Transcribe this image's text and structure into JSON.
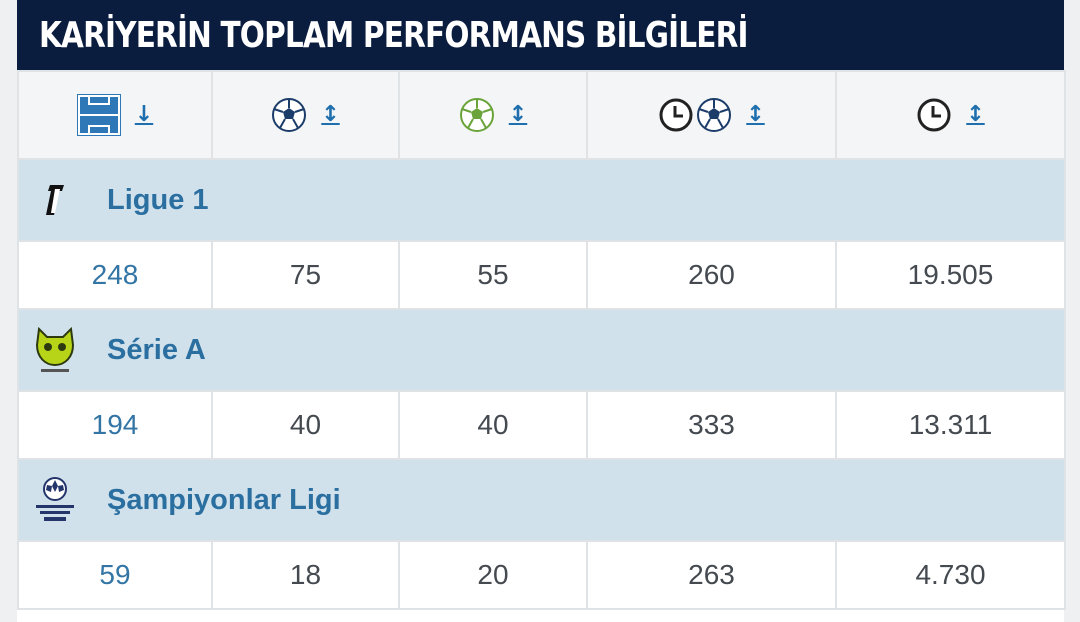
{
  "title": "KARİYERİN TOPLAM PERFORMANS BİLGİLERİ",
  "header_icons": [
    {
      "icon": "pitch-icon",
      "sort": "↓"
    },
    {
      "icon": "goals-ball-icon",
      "sort": "↕"
    },
    {
      "icon": "assists-ball-icon",
      "sort": "↕"
    },
    {
      "icon": "minutes-per-goal-icon",
      "sort": "↕"
    },
    {
      "icon": "minutes-played-icon",
      "sort": "↕"
    }
  ],
  "leagues": [
    {
      "name": "Ligue 1",
      "logo": "ligue1-logo",
      "stats": [
        "248",
        "75",
        "55",
        "260",
        "19.505"
      ]
    },
    {
      "name": "Série A",
      "logo": "serie-a-logo",
      "stats": [
        "194",
        "40",
        "40",
        "333",
        "13.311"
      ]
    },
    {
      "name": "Şampiyonlar Ligi",
      "logo": "champions-league-logo",
      "stats": [
        "59",
        "18",
        "20",
        "263",
        "4.730"
      ]
    }
  ],
  "colors": {
    "title_bg": "#0b1d3f",
    "header_bg": "#f4f5f6",
    "league_row_bg": "#d0e1ec",
    "link_blue": "#2a6fa0"
  }
}
